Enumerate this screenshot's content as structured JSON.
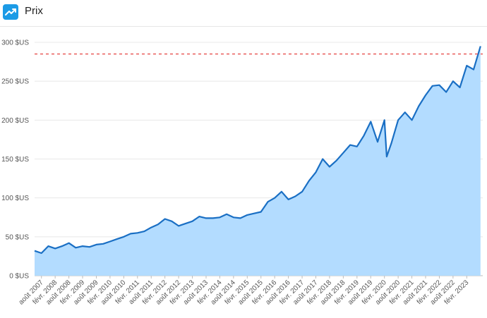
{
  "header": {
    "title": "Prix",
    "icon": "trending-up-icon"
  },
  "colors": {
    "line": "#1a6fc4",
    "area": "#b3dcff",
    "reference": "#e8504f",
    "icon_bg": "#1c9be6"
  },
  "chart_data": {
    "type": "area",
    "title": "",
    "xlabel": "",
    "ylabel": "",
    "ylim": [
      0,
      300
    ],
    "grid": true,
    "reference_line": 285,
    "y_ticks": [
      "0 $US",
      "50 $US",
      "100 $US",
      "150 $US",
      "200 $US",
      "250 $US",
      "300 $US"
    ],
    "x_ticks": [
      "août 2007",
      "févr. 2008",
      "août 2008",
      "févr. 2009",
      "août 2009",
      "févr. 2010",
      "août 2010",
      "févr. 2011",
      "août 2011",
      "févr. 2012",
      "août 2012",
      "févr. 2013",
      "août 2013",
      "févr. 2014",
      "août 2014",
      "févr. 2015",
      "août 2015",
      "févr. 2016",
      "août 2016",
      "févr. 2017",
      "août 2017",
      "févr. 2018",
      "août 2018",
      "févr. 2019",
      "août 2019",
      "févr. 2020",
      "août 2020",
      "févr. 2021",
      "août 2021",
      "févr. 2022",
      "août 2022",
      "févr. 2023"
    ],
    "series": [
      {
        "x": [
          "2007-05",
          "2007-08",
          "2007-11",
          "2008-02",
          "2008-05",
          "2008-08",
          "2008-11",
          "2009-02",
          "2009-05",
          "2009-08",
          "2009-11",
          "2010-02",
          "2010-05",
          "2010-08",
          "2010-11",
          "2011-02",
          "2011-05",
          "2011-08",
          "2011-11",
          "2012-02",
          "2012-05",
          "2012-08",
          "2012-11",
          "2013-02",
          "2013-05",
          "2013-08",
          "2013-11",
          "2014-02",
          "2014-05",
          "2014-08",
          "2014-11",
          "2015-02",
          "2015-05",
          "2015-08",
          "2015-11",
          "2016-02",
          "2016-05",
          "2016-08",
          "2016-11",
          "2017-02",
          "2017-05",
          "2017-08",
          "2017-11",
          "2018-02",
          "2018-05",
          "2018-08",
          "2018-11",
          "2019-02",
          "2019-05",
          "2019-08",
          "2019-11",
          "2020-02",
          "2020-03",
          "2020-05",
          "2020-08",
          "2020-11",
          "2021-02",
          "2021-05",
          "2021-08",
          "2021-11",
          "2022-02",
          "2022-05",
          "2022-08",
          "2022-11",
          "2023-02",
          "2023-05",
          "2023-08"
        ],
        "values": [
          32,
          29,
          38,
          35,
          38,
          42,
          36,
          38,
          37,
          40,
          41,
          44,
          47,
          50,
          54,
          55,
          57,
          62,
          66,
          73,
          70,
          64,
          67,
          70,
          76,
          74,
          74,
          75,
          79,
          75,
          74,
          78,
          80,
          82,
          95,
          100,
          108,
          98,
          102,
          108,
          122,
          133,
          150,
          140,
          148,
          158,
          168,
          166,
          180,
          198,
          172,
          200,
          153,
          170,
          200,
          210,
          200,
          218,
          232,
          244,
          245,
          236,
          250,
          242,
          270,
          265,
          295
        ]
      }
    ]
  }
}
